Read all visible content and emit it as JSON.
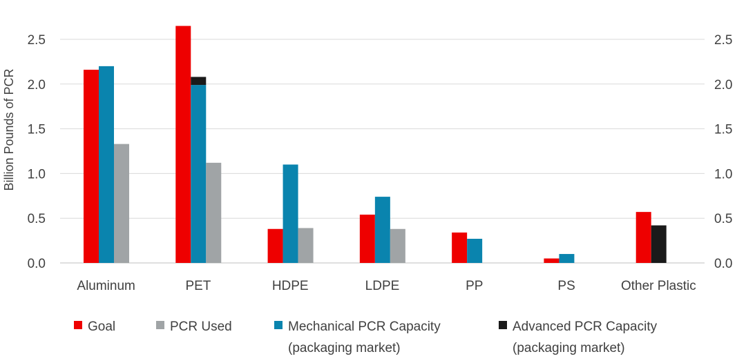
{
  "chart_data": {
    "type": "bar",
    "ylabel": "Billion Pounds of PCR",
    "xlabel": "",
    "ylim": [
      0,
      2.7
    ],
    "yticks": [
      "0.0",
      "0.5",
      "1.0",
      "1.5",
      "2.0",
      "2.5"
    ],
    "grid": true,
    "legend_position": "bottom",
    "categories": [
      "Aluminum",
      "PET",
      "HDPE",
      "LDPE",
      "PP",
      "PS",
      "Other Plastic"
    ],
    "series": [
      {
        "name": "Goal",
        "color": "#ee0000",
        "values": [
          2.16,
          2.65,
          0.38,
          0.54,
          0.34,
          0.05,
          0.57
        ]
      },
      {
        "name": "Mechanical PCR Capacity (packaging market)",
        "color": "#0a84ae",
        "values": [
          2.2,
          1.99,
          1.1,
          0.74,
          0.27,
          0.1,
          null
        ]
      },
      {
        "name": "Advanced PCR Capacity (packaging market)",
        "color": "#1a1a1a",
        "values": [
          null,
          0.09,
          null,
          null,
          null,
          null,
          0.42
        ],
        "stacked_on": "Mechanical PCR Capacity (packaging market)"
      },
      {
        "name": "PCR Used",
        "color": "#a0a4a6",
        "values": [
          1.33,
          1.12,
          0.39,
          0.38,
          null,
          null,
          null
        ]
      }
    ],
    "legend": [
      {
        "line1": "Goal",
        "line2": "",
        "color": "#ee0000"
      },
      {
        "line1": "PCR Used",
        "line2": "",
        "color": "#a0a4a6"
      },
      {
        "line1": "Mechanical PCR Capacity",
        "line2": "(packaging market)",
        "color": "#0a84ae"
      },
      {
        "line1": "Advanced PCR Capacity",
        "line2": "(packaging market)",
        "color": "#1a1a1a"
      }
    ]
  }
}
